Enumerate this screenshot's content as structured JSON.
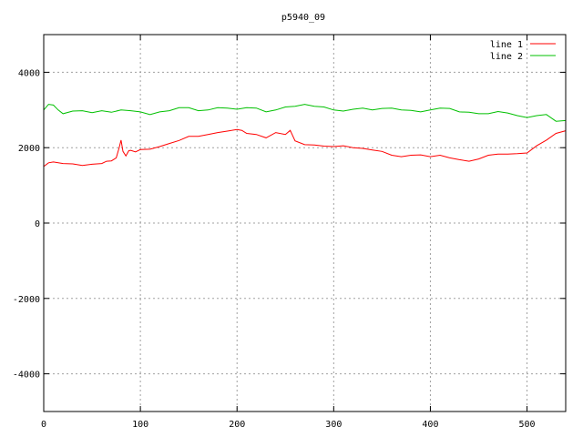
{
  "chart_data": {
    "type": "line",
    "title": "p5940_09",
    "xlabel": "",
    "ylabel": "",
    "xlim": [
      0,
      540
    ],
    "ylim": [
      -5000,
      5000
    ],
    "xticks": [
      0,
      100,
      200,
      300,
      400,
      500
    ],
    "yticks": [
      -4000,
      -2000,
      0,
      2000,
      4000
    ],
    "grid": true,
    "legend_position": "top-right",
    "series": [
      {
        "name": "line 1",
        "color": "#ff0000",
        "x": [
          0,
          5,
          10,
          20,
          30,
          40,
          50,
          60,
          65,
          70,
          75,
          78,
          80,
          82,
          85,
          88,
          90,
          95,
          100,
          110,
          120,
          130,
          140,
          150,
          160,
          170,
          180,
          190,
          200,
          205,
          210,
          220,
          230,
          240,
          250,
          255,
          260,
          270,
          280,
          290,
          300,
          310,
          320,
          330,
          340,
          350,
          360,
          370,
          380,
          390,
          400,
          410,
          420,
          430,
          440,
          450,
          460,
          470,
          480,
          490,
          500,
          510,
          520,
          530,
          540
        ],
        "y": [
          1500,
          1600,
          1620,
          1580,
          1570,
          1530,
          1560,
          1580,
          1640,
          1650,
          1730,
          2000,
          2200,
          1900,
          1780,
          1920,
          1930,
          1890,
          1950,
          1960,
          2030,
          2110,
          2190,
          2300,
          2300,
          2350,
          2400,
          2440,
          2480,
          2460,
          2380,
          2350,
          2260,
          2400,
          2350,
          2460,
          2180,
          2080,
          2070,
          2040,
          2030,
          2050,
          2000,
          1980,
          1940,
          1900,
          1800,
          1760,
          1800,
          1810,
          1760,
          1800,
          1730,
          1680,
          1640,
          1700,
          1800,
          1830,
          1830,
          1840,
          1860,
          2050,
          2200,
          2380,
          2450
        ]
      },
      {
        "name": "line 2",
        "color": "#00c000",
        "x": [
          0,
          5,
          10,
          15,
          20,
          30,
          40,
          50,
          60,
          70,
          80,
          90,
          100,
          110,
          120,
          130,
          140,
          150,
          160,
          170,
          180,
          190,
          200,
          210,
          220,
          230,
          240,
          250,
          260,
          270,
          280,
          290,
          300,
          310,
          320,
          330,
          340,
          350,
          360,
          370,
          380,
          390,
          400,
          410,
          420,
          430,
          440,
          450,
          460,
          470,
          480,
          490,
          500,
          510,
          520,
          530,
          540
        ],
        "y": [
          3000,
          3150,
          3130,
          3000,
          2900,
          2970,
          2980,
          2930,
          2980,
          2940,
          3000,
          2980,
          2950,
          2880,
          2950,
          2980,
          3060,
          3060,
          2980,
          3000,
          3060,
          3050,
          3020,
          3060,
          3050,
          2950,
          3000,
          3080,
          3100,
          3150,
          3100,
          3080,
          3000,
          2970,
          3020,
          3050,
          3000,
          3040,
          3050,
          3000,
          2990,
          2950,
          3000,
          3050,
          3040,
          2950,
          2940,
          2900,
          2900,
          2960,
          2920,
          2850,
          2800,
          2850,
          2880,
          2700,
          2720
        ]
      }
    ]
  }
}
